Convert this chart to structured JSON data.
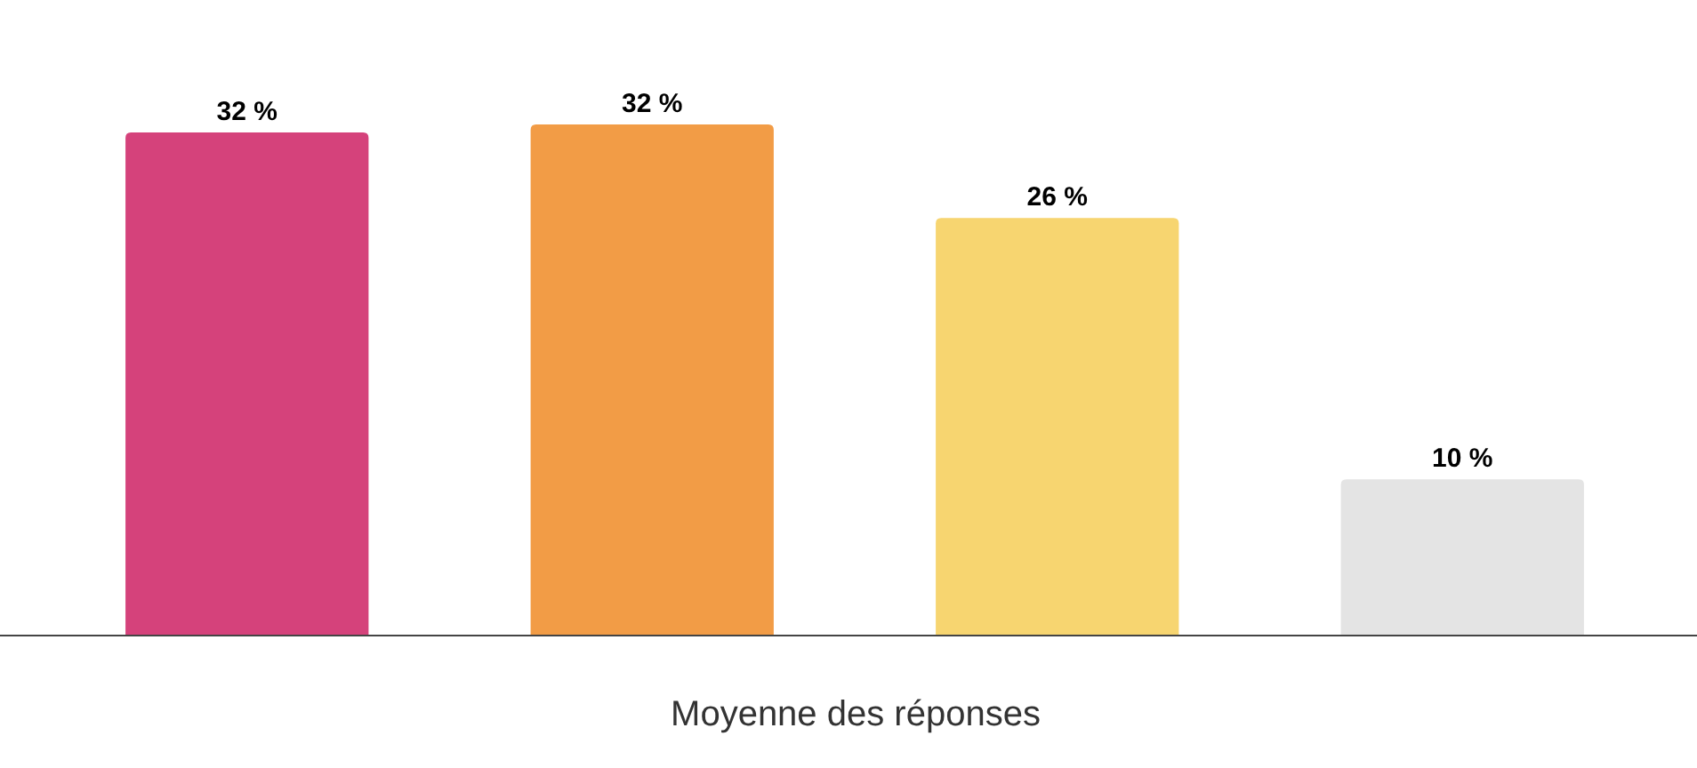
{
  "chart_data": {
    "type": "bar",
    "xlabel": "Moyenne des réponses",
    "categories": [
      null,
      null,
      null,
      null
    ],
    "values": [
      31.7,
      32.2,
      26.3,
      9.8
    ],
    "colors": [
      "#d5427b",
      "#f29c46",
      "#f7d570",
      "#e4e4e4"
    ],
    "value_labels": [
      "32 %",
      "32 %",
      "26 %",
      "10 %"
    ]
  }
}
